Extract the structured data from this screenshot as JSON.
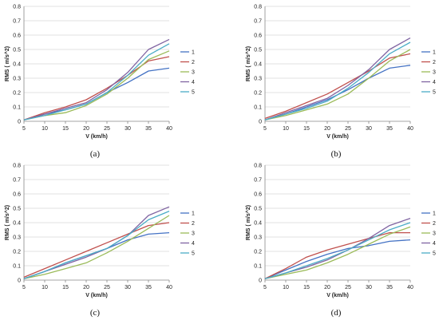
{
  "series_colors": [
    "#4472C4",
    "#C0504D",
    "#9BBB59",
    "#8064A2",
    "#4BACC6"
  ],
  "chart_data": [
    {
      "type": "line",
      "caption": "(a)",
      "xlabel": "V (km/h)",
      "ylabel": "RMS ( m/s^2)",
      "x": [
        5,
        10,
        15,
        20,
        25,
        30,
        35,
        40
      ],
      "xlim": [
        5,
        40
      ],
      "ylim": [
        0,
        0.8
      ],
      "xticks": [
        "5",
        "10",
        "15",
        "20",
        "25",
        "30",
        "35",
        "40"
      ],
      "yticks": [
        "0",
        "0.1",
        "0.2",
        "0.3",
        "0.4",
        "0.5",
        "0.6",
        "0.7",
        "0.8"
      ],
      "series": [
        {
          "name": "1",
          "values": [
            0.01,
            0.05,
            0.08,
            0.12,
            0.2,
            0.27,
            0.35,
            0.37
          ]
        },
        {
          "name": "2",
          "values": [
            0.01,
            0.06,
            0.1,
            0.15,
            0.23,
            0.32,
            0.42,
            0.45
          ]
        },
        {
          "name": "3",
          "values": [
            0.01,
            0.04,
            0.06,
            0.11,
            0.19,
            0.3,
            0.43,
            0.49
          ]
        },
        {
          "name": "4",
          "values": [
            0.01,
            0.05,
            0.09,
            0.13,
            0.22,
            0.34,
            0.5,
            0.57
          ]
        },
        {
          "name": "5",
          "values": [
            0.01,
            0.04,
            0.08,
            0.12,
            0.2,
            0.32,
            0.46,
            0.54
          ]
        }
      ]
    },
    {
      "type": "line",
      "caption": "(b)",
      "xlabel": "V (km/h)",
      "ylabel": "RMS ( m/s^2)",
      "x": [
        5,
        10,
        15,
        20,
        25,
        30,
        35,
        40
      ],
      "xlim": [
        5,
        40
      ],
      "ylim": [
        0,
        0.8
      ],
      "xticks": [
        "5",
        "10",
        "15",
        "20",
        "25",
        "30",
        "35",
        "40"
      ],
      "yticks": [
        "0",
        "0.1",
        "0.2",
        "0.3",
        "0.4",
        "0.5",
        "0.6",
        "0.7",
        "0.8"
      ],
      "series": [
        {
          "name": "1",
          "values": [
            0.01,
            0.05,
            0.1,
            0.15,
            0.22,
            0.3,
            0.37,
            0.39
          ]
        },
        {
          "name": "2",
          "values": [
            0.02,
            0.07,
            0.13,
            0.19,
            0.27,
            0.35,
            0.44,
            0.47
          ]
        },
        {
          "name": "3",
          "values": [
            0.01,
            0.04,
            0.08,
            0.12,
            0.19,
            0.3,
            0.42,
            0.5
          ]
        },
        {
          "name": "4",
          "values": [
            0.01,
            0.06,
            0.11,
            0.16,
            0.25,
            0.36,
            0.5,
            0.58
          ]
        },
        {
          "name": "5",
          "values": [
            0.01,
            0.05,
            0.09,
            0.14,
            0.23,
            0.34,
            0.47,
            0.55
          ]
        }
      ]
    },
    {
      "type": "line",
      "caption": "(c)",
      "xlabel": "V (km/h)",
      "ylabel": "RMS ( m/s^2)",
      "x": [
        5,
        10,
        15,
        20,
        25,
        30,
        35,
        40
      ],
      "xlim": [
        5,
        40
      ],
      "ylim": [
        0,
        0.8
      ],
      "xticks": [
        "5",
        "10",
        "15",
        "20",
        "25",
        "30",
        "35",
        "40"
      ],
      "yticks": [
        "0",
        "0.1",
        "0.2",
        "0.3",
        "0.4",
        "0.5",
        "0.6",
        "0.7",
        "0.8"
      ],
      "series": [
        {
          "name": "1",
          "values": [
            0.01,
            0.06,
            0.12,
            0.17,
            0.22,
            0.28,
            0.32,
            0.33
          ]
        },
        {
          "name": "2",
          "values": [
            0.02,
            0.08,
            0.14,
            0.2,
            0.26,
            0.32,
            0.38,
            0.4
          ]
        },
        {
          "name": "3",
          "values": [
            0.01,
            0.04,
            0.08,
            0.12,
            0.19,
            0.27,
            0.36,
            0.45
          ]
        },
        {
          "name": "4",
          "values": [
            0.01,
            0.06,
            0.11,
            0.16,
            0.22,
            0.31,
            0.45,
            0.51
          ]
        },
        {
          "name": "5",
          "values": [
            0.01,
            0.06,
            0.12,
            0.17,
            0.22,
            0.31,
            0.42,
            0.48
          ]
        }
      ]
    },
    {
      "type": "line",
      "caption": "(d)",
      "xlabel": "V (km/h)",
      "ylabel": "RMS ( m/s^2)",
      "x": [
        5,
        10,
        15,
        20,
        25,
        30,
        35,
        40
      ],
      "xlim": [
        5,
        40
      ],
      "ylim": [
        0,
        0.8
      ],
      "xticks": [
        "5",
        "10",
        "15",
        "20",
        "25",
        "30",
        "35",
        "40"
      ],
      "yticks": [
        "0",
        "0.1",
        "0.2",
        "0.3",
        "0.4",
        "0.5",
        "0.6",
        "0.7",
        "0.8"
      ],
      "series": [
        {
          "name": "1",
          "values": [
            0.01,
            0.07,
            0.13,
            0.18,
            0.22,
            0.24,
            0.27,
            0.28
          ]
        },
        {
          "name": "2",
          "values": [
            0.01,
            0.08,
            0.16,
            0.21,
            0.25,
            0.29,
            0.33,
            0.33
          ]
        },
        {
          "name": "3",
          "values": [
            0.01,
            0.04,
            0.07,
            0.12,
            0.18,
            0.25,
            0.32,
            0.37
          ]
        },
        {
          "name": "4",
          "values": [
            0.01,
            0.05,
            0.09,
            0.14,
            0.21,
            0.29,
            0.38,
            0.43
          ]
        },
        {
          "name": "5",
          "values": [
            0.01,
            0.05,
            0.1,
            0.15,
            0.21,
            0.28,
            0.35,
            0.4
          ]
        }
      ]
    }
  ]
}
